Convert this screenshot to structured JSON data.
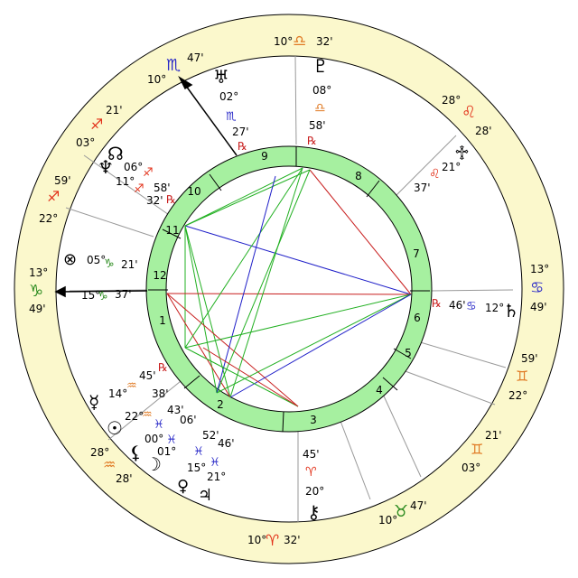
{
  "colors": {
    "zodiac_band": "#FBF8CC",
    "house_ring": "#A6F0A0",
    "fire": "#E23018",
    "earth": "#2A8A1E",
    "air": "#E07A24",
    "water": "#2A2AC8",
    "black": "#000000",
    "line_green": "#22B022",
    "line_blue": "#1E1EC8",
    "line_red": "#C81E1E"
  },
  "house_numbers": [
    "1",
    "2",
    "3",
    "4",
    "5",
    "6",
    "7",
    "8",
    "9",
    "10",
    "11",
    "12"
  ],
  "cusp_labels": [
    {
      "id": "mc",
      "glyph": "♎",
      "deg": "10°",
      "min": "32'",
      "color": "air"
    },
    {
      "id": "ic",
      "glyph": "♈",
      "deg": "10°",
      "min": "32'",
      "color": "fire"
    },
    {
      "id": "asc",
      "glyph": "♑",
      "deg": "13°",
      "min": "49'",
      "color": "earth"
    },
    {
      "id": "dsc",
      "glyph": "♋",
      "deg": "13°",
      "min": "49'",
      "color": "water"
    },
    {
      "id": "h11",
      "glyph": "♏",
      "deg": "10°",
      "min": "47'",
      "color": "water"
    },
    {
      "id": "h12",
      "glyph": "♐",
      "deg": "03°",
      "min": "21'",
      "color": "fire"
    },
    {
      "id": "h12b",
      "glyph": "♐",
      "deg": "22°",
      "min": "59'",
      "color": "fire"
    },
    {
      "id": "h2",
      "glyph": "♒",
      "deg": "28°",
      "min": "28'",
      "color": "air"
    },
    {
      "id": "h5",
      "glyph": "♊",
      "deg": "03°",
      "min": "21'",
      "color": "air"
    },
    {
      "id": "h6",
      "glyph": "♊",
      "deg": "22°",
      "min": "59'",
      "color": "air"
    },
    {
      "id": "h4",
      "glyph": "♉",
      "deg": "10°",
      "min": "47'",
      "color": "earth"
    },
    {
      "id": "h8",
      "glyph": "♌",
      "deg": "28°",
      "min": "28'",
      "color": "fire"
    }
  ],
  "planets": [
    {
      "id": "uranus",
      "glyph": "♅",
      "deg": "02°",
      "sign": "♏",
      "min": "27'",
      "retro": "℞"
    },
    {
      "id": "pluto",
      "glyph": "♇",
      "deg": "08°",
      "sign": "♎",
      "min": "58'",
      "retro": "℞"
    },
    {
      "id": "neptune",
      "glyph": "♆",
      "deg": "06°",
      "sign": "♐",
      "min": "58'",
      "retro": "℞"
    },
    {
      "id": "north-node",
      "glyph": "☊",
      "deg": "11°",
      "sign": "♐",
      "min": "32'",
      "retro": ""
    },
    {
      "id": "part-of-fortune",
      "glyph": "⊗",
      "deg": "05°",
      "sign": "♑",
      "min": "21'",
      "retro": ""
    },
    {
      "id": "mars",
      "glyph": "♂",
      "deg": "15°",
      "sign": "♑",
      "min": "37'",
      "retro": ""
    },
    {
      "id": "mercury",
      "glyph": "☿",
      "deg": "14°",
      "sign": "♒",
      "min": "45'",
      "retro": "℞"
    },
    {
      "id": "mercury-min2",
      "glyph": "",
      "deg": "",
      "sign": "",
      "min": "38'",
      "retro": ""
    },
    {
      "id": "sun",
      "glyph": "☉",
      "deg": "22°",
      "sign": "♓",
      "min": "43'",
      "retro": ""
    },
    {
      "id": "sun-b",
      "glyph": "",
      "deg": "",
      "sign": "",
      "min": "06'",
      "retro": ""
    },
    {
      "id": "lilith",
      "glyph": "⚸",
      "deg": "00°",
      "sign": "♓",
      "min": "52'",
      "retro": ""
    },
    {
      "id": "moon",
      "glyph": "☽",
      "deg": "01°",
      "sign": "♓",
      "min": "46'",
      "retro": ""
    },
    {
      "id": "venus",
      "glyph": "♀",
      "deg": "15°",
      "sign": "",
      "min": "21°",
      "retro": ""
    },
    {
      "id": "jupiter",
      "glyph": "♃",
      "deg": "",
      "sign": "",
      "min": "",
      "retro": ""
    },
    {
      "id": "chiron",
      "glyph": "⚷",
      "deg": "20°",
      "sign": "♈",
      "min": "45'",
      "retro": ""
    },
    {
      "id": "saturn",
      "glyph": "♄",
      "deg": "12°",
      "sign": "♋",
      "min": "46'",
      "retro": "℞"
    },
    {
      "id": "fixed-cross",
      "glyph": "♱",
      "deg": "21°",
      "sign": "♌",
      "min": "37'",
      "retro": ""
    }
  ],
  "texts": {
    "uranus_deg": "02°",
    "uranus_sign": "♏",
    "uranus_min": "27'",
    "uranus_r": "℞",
    "pluto_deg": "08°",
    "pluto_sign": "♎",
    "pluto_min": "58'",
    "pluto_r": "℞",
    "nep_deg": "06°",
    "node_deg": "11°",
    "nep_min": "58'",
    "node_min": "32'",
    "nep_r": "℞",
    "pof_deg": "05°",
    "pof_min": "21'",
    "mars_deg": "15°",
    "mars_min": "37'",
    "merc_min1": "45'",
    "merc_r": "℞",
    "merc_deg": "14°",
    "merc_min2": "38'",
    "sun_deg": "22°",
    "sun_min1": "43'",
    "sun_min2": "06'",
    "lil_deg": "00°",
    "moon_deg": "01°",
    "lil_min": "52'",
    "moon_min": "46'",
    "venus_deg": "15°",
    "jup_deg": "21°",
    "chiron_min": "45'",
    "chiron_deg": "20°",
    "sat_r": "℞",
    "sat_min": "46'",
    "sat_deg": "12°",
    "cross_deg": "21°",
    "cross_min": "37'"
  }
}
